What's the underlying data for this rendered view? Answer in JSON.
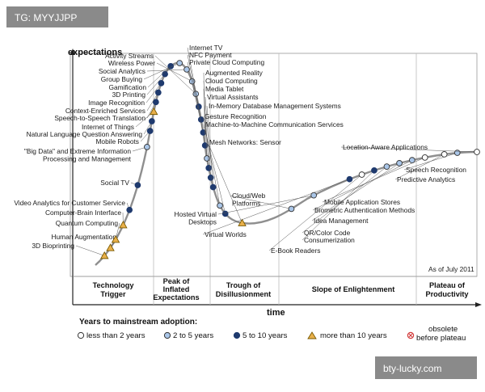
{
  "watermarks": {
    "top_left": "TG: MYYJJPP",
    "bottom_right": "bty-lucky.com"
  },
  "chart_data": {
    "type": "scatter",
    "ylabel": "expectations",
    "xlabel": "time",
    "as_of": "As of July 2011",
    "phases": [
      "Technology Trigger",
      "Peak of Inflated Expectations",
      "Trough of Disillusionment",
      "Slope of Enlightenment",
      "Plateau of Productivity"
    ],
    "legend": {
      "title": "Years to mainstream adoption:",
      "items": [
        {
          "key": "lt2",
          "label": "less than 2 years",
          "color": "#ffffff"
        },
        {
          "key": "2to5",
          "label": "2 to 5 years",
          "color": "#aac6e8"
        },
        {
          "key": "5to10",
          "label": "5 to 10 years",
          "color": "#1f3a6e"
        },
        {
          "key": "gt10",
          "label": "more than 10 years",
          "color": "#e9b04a"
        },
        {
          "key": "obs",
          "label": "obsolete before plateau",
          "color": "#d23b3b"
        }
      ]
    },
    "technologies": [
      {
        "name": "3D Bioprinting",
        "cat": "gt10",
        "t": 0.02
      },
      {
        "name": "Human Augmentation",
        "cat": "gt10",
        "t": 0.035
      },
      {
        "name": "Quantum Computing",
        "cat": "gt10",
        "t": 0.05
      },
      {
        "name": "Computer-Brain Interface",
        "cat": "gt10",
        "t": 0.075
      },
      {
        "name": "Video Analytics for Customer Service",
        "cat": "5to10",
        "t": 0.1
      },
      {
        "name": "Social TV",
        "cat": "5to10",
        "t": 0.14
      },
      {
        "name": "\"Big Data\" and Extreme Information Processing and Management",
        "cat": "2to5",
        "t": 0.2
      },
      {
        "name": "Mobile Robots",
        "cat": "5to10",
        "t": 0.225
      },
      {
        "name": "Natural Language Question Answering",
        "cat": "5to10",
        "t": 0.24
      },
      {
        "name": "Internet of Things",
        "cat": "gt10",
        "t": 0.255
      },
      {
        "name": "Speech-to-Speech Translation",
        "cat": "5to10",
        "t": 0.27
      },
      {
        "name": "Context-Enriched Services",
        "cat": "5to10",
        "t": 0.285
      },
      {
        "name": "Image Recognition",
        "cat": "5to10",
        "t": 0.3
      },
      {
        "name": "3D Printing",
        "cat": "5to10",
        "t": 0.315
      },
      {
        "name": "Gamification",
        "cat": "5to10",
        "t": 0.33
      },
      {
        "name": "Group Buying",
        "cat": "2to5",
        "t": 0.345
      },
      {
        "name": "Social Analytics",
        "cat": "2to5",
        "t": 0.36
      },
      {
        "name": "Wireless Power",
        "cat": "2to5",
        "t": 0.38
      },
      {
        "name": "Activity Streams",
        "cat": "2to5",
        "t": 0.4
      },
      {
        "name": "Internet TV",
        "cat": "5to10",
        "t": 0.42
      },
      {
        "name": "NFC Payment",
        "cat": "5to10",
        "t": 0.44
      },
      {
        "name": "Private Cloud Computing",
        "cat": "5to10",
        "t": 0.46
      },
      {
        "name": "Augmented Reality",
        "cat": "5to10",
        "t": 0.48
      },
      {
        "name": "Cloud Computing",
        "cat": "2to5",
        "t": 0.5
      },
      {
        "name": "Media Tablet",
        "cat": "5to10",
        "t": 0.515
      },
      {
        "name": "Virtual Assistants",
        "cat": "5to10",
        "t": 0.53
      },
      {
        "name": "In-Memory Database Management Systems",
        "cat": "5to10",
        "t": 0.545
      },
      {
        "name": "Gesture Recognition",
        "cat": "2to5",
        "t": 0.575
      },
      {
        "name": "Machine-to-Machine Communication Services",
        "cat": "5to10",
        "t": 0.59
      },
      {
        "name": "Mesh Networks: Sensor",
        "cat": "gt10",
        "t": 0.62
      },
      {
        "name": "Cloud/Web Platforms",
        "cat": "2to5",
        "t": 0.7
      },
      {
        "name": "Hosted Virtual Desktops",
        "cat": "2to5",
        "t": 0.74
      },
      {
        "name": "Virtual Worlds",
        "cat": "5to10",
        "t": 0.8
      },
      {
        "name": "E-Book Readers",
        "cat": "lt2",
        "t": 0.82
      },
      {
        "name": "Consumerization",
        "cat": "5to10",
        "t": 0.84
      },
      {
        "name": "QR/Color Code",
        "cat": "2to5",
        "t": 0.86
      },
      {
        "name": "Idea Management",
        "cat": "2to5",
        "t": 0.88
      },
      {
        "name": "Biometric Authentication Methods",
        "cat": "2to5",
        "t": 0.9
      },
      {
        "name": "Mobile Application Stores",
        "cat": "lt2",
        "t": 0.92
      },
      {
        "name": "Predictive Analytics",
        "cat": "lt2",
        "t": 0.95
      },
      {
        "name": "Speech Recognition",
        "cat": "2to5",
        "t": 0.97
      },
      {
        "name": "Location-Aware Applications",
        "cat": "lt2",
        "t": 1.0
      }
    ]
  }
}
